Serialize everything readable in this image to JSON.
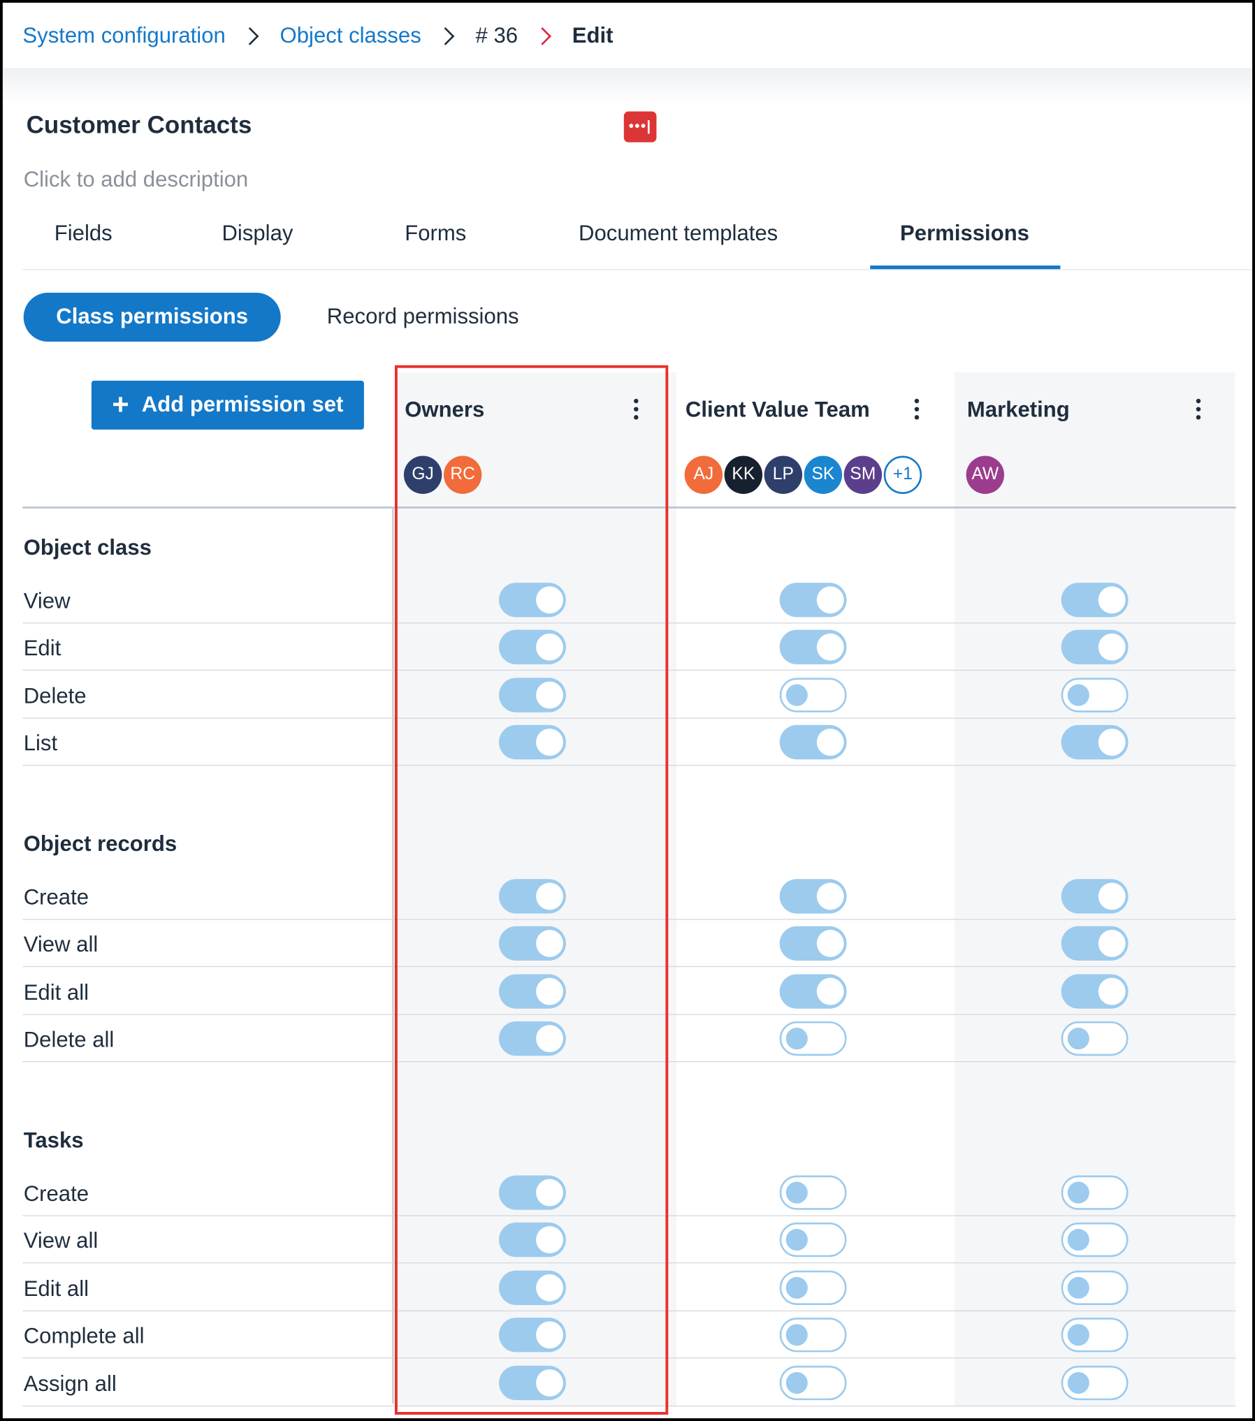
{
  "breadcrumb": {
    "system_configuration": "System configuration",
    "object_classes": "Object classes",
    "record_id": "# 36",
    "current": "Edit"
  },
  "object_class": {
    "title": "Customer Contacts",
    "description_placeholder": "Click to add description",
    "icon_glyph": "•••|"
  },
  "tabs": {
    "fields": "Fields",
    "display": "Display",
    "forms": "Forms",
    "document_templates": "Document templates",
    "permissions": "Permissions"
  },
  "subtabs": {
    "class_permissions": "Class permissions",
    "record_permissions": "Record permissions"
  },
  "add_permission_set": {
    "icon": "+",
    "label": "Add permission set"
  },
  "permission_sets": [
    {
      "name": "Owners",
      "members": [
        {
          "initials": "GJ",
          "color": "#2e3f6b"
        },
        {
          "initials": "RC",
          "color": "#f26b3a"
        }
      ],
      "more": ""
    },
    {
      "name": "Client Value Team",
      "members": [
        {
          "initials": "AJ",
          "color": "#f26b3a"
        },
        {
          "initials": "KK",
          "color": "#17202f"
        },
        {
          "initials": "LP",
          "color": "#2e3f6b"
        },
        {
          "initials": "SK",
          "color": "#1a86d0"
        },
        {
          "initials": "SM",
          "color": "#5b3f8c"
        }
      ],
      "more": "+1"
    },
    {
      "name": "Marketing",
      "members": [
        {
          "initials": "AW",
          "color": "#9b3d8c"
        }
      ],
      "more": ""
    }
  ],
  "sections": [
    {
      "title": "Object class",
      "rows": [
        {
          "label": "View",
          "values": [
            true,
            true,
            true
          ]
        },
        {
          "label": "Edit",
          "values": [
            true,
            true,
            true
          ]
        },
        {
          "label": "Delete",
          "values": [
            true,
            false,
            false
          ]
        },
        {
          "label": "List",
          "values": [
            true,
            true,
            true
          ]
        }
      ]
    },
    {
      "title": "Object records",
      "rows": [
        {
          "label": "Create",
          "values": [
            true,
            true,
            true
          ]
        },
        {
          "label": "View all",
          "values": [
            true,
            true,
            true
          ]
        },
        {
          "label": "Edit all",
          "values": [
            true,
            true,
            true
          ]
        },
        {
          "label": "Delete all",
          "values": [
            true,
            false,
            false
          ]
        }
      ]
    },
    {
      "title": "Tasks",
      "rows": [
        {
          "label": "Create",
          "values": [
            true,
            false,
            false
          ]
        },
        {
          "label": "View all",
          "values": [
            true,
            false,
            false
          ]
        },
        {
          "label": "Edit all",
          "values": [
            true,
            false,
            false
          ]
        },
        {
          "label": "Complete all",
          "values": [
            true,
            false,
            false
          ]
        },
        {
          "label": "Assign all",
          "values": [
            true,
            false,
            false
          ]
        }
      ]
    }
  ],
  "colors": {
    "accent": "#1478c8",
    "toggle_on": "#9ccbee",
    "highlight_box": "#e8312a",
    "danger_icon": "#dc3535"
  }
}
